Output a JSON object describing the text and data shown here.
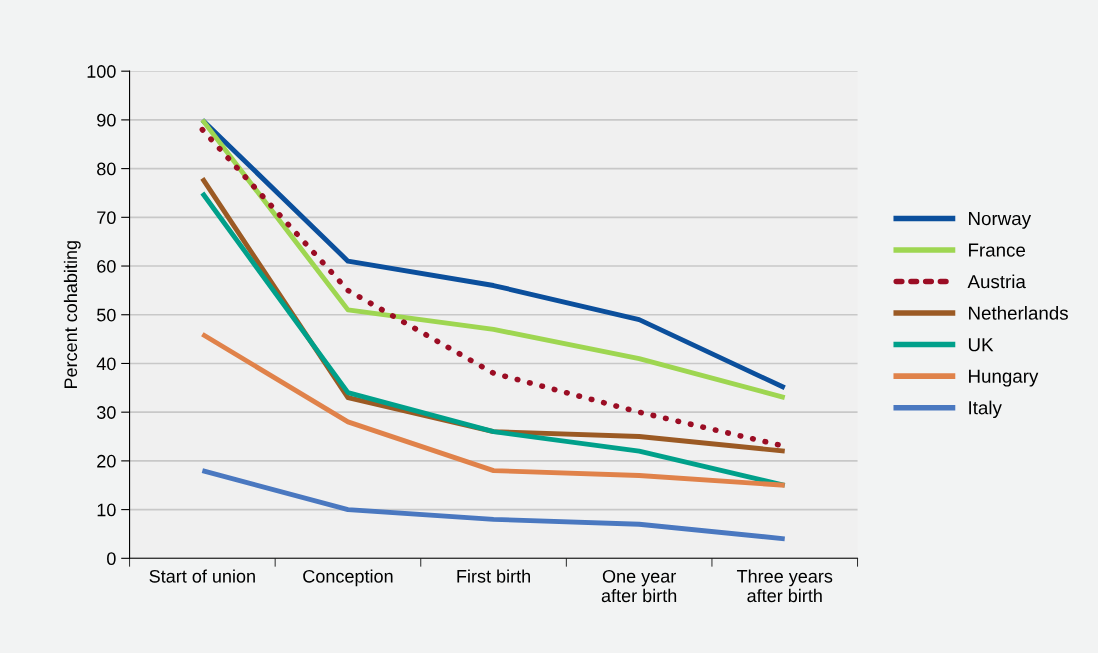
{
  "chart_data": {
    "type": "line",
    "ylabel": "Percent cohabiting",
    "categories": [
      "Start of union",
      "Conception",
      "First birth",
      "One year\nafter birth",
      "Three years\nafter birth"
    ],
    "series": [
      {
        "name": "Norway",
        "color": "#0b4f9c",
        "values": [
          90,
          61,
          56,
          49,
          35
        ]
      },
      {
        "name": "France",
        "color": "#9ed651",
        "values": [
          90,
          51,
          47,
          41,
          33
        ]
      },
      {
        "name": "Austria",
        "color": "#9b0d24",
        "line_style": "dotted",
        "values": [
          88,
          55,
          38,
          30,
          23
        ]
      },
      {
        "name": "Netherlands",
        "color": "#9b5a24",
        "values": [
          78,
          33,
          26,
          25,
          22
        ]
      },
      {
        "name": "UK",
        "color": "#00a08a",
        "values": [
          75,
          34,
          26,
          22,
          15
        ]
      },
      {
        "name": "Hungary",
        "color": "#e0824a",
        "values": [
          46,
          28,
          18,
          17,
          15
        ]
      },
      {
        "name": "Italy",
        "color": "#4a78c0",
        "values": [
          18,
          10,
          8,
          7,
          4
        ]
      }
    ],
    "ylim": [
      0,
      100
    ],
    "yticks": [
      0,
      10,
      20,
      30,
      40,
      50,
      60,
      70,
      80,
      90,
      100
    ],
    "grid": "y",
    "legend": "right",
    "line_style": "solid",
    "marker": "none"
  }
}
